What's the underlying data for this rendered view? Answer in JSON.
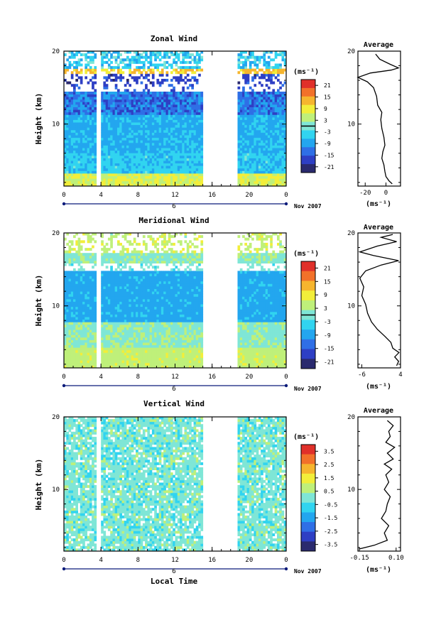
{
  "chart_data": [
    {
      "type": "heatmap",
      "title": "Zonal Wind",
      "ylabel": "Height (km)",
      "xlabel": "",
      "date_label": "6",
      "month_label": "Nov 2007",
      "x_ticks": [
        "0",
        "4",
        "8",
        "12",
        "16",
        "20",
        "0"
      ],
      "y_ticks": [
        "10",
        "20"
      ],
      "xlim": [
        0,
        24
      ],
      "ylim": [
        1.5,
        20
      ],
      "gaps": [
        [
          3.7,
          3.9
        ],
        [
          15.0,
          18.6
        ]
      ],
      "colorbar": {
        "unit": "(ms⁻¹)",
        "ticks": [
          "21",
          "15",
          "9",
          "3",
          "-3",
          "-9",
          "-15",
          "-21"
        ],
        "range": [
          -24,
          24
        ],
        "zero_line": 0
      },
      "profile": {
        "title": "Average",
        "unit_label": "(ms⁻¹)",
        "x_ticks": [
          "-20",
          "0"
        ],
        "y_ticks": [
          "10",
          "20"
        ],
        "xlim": [
          -27,
          14
        ],
        "ylim": [
          1.5,
          20
        ],
        "zero_line": 0,
        "points": [
          [
            6,
            1.8
          ],
          [
            3,
            2.2
          ],
          [
            0,
            2.8
          ],
          [
            -1,
            3.5
          ],
          [
            -2,
            4.4
          ],
          [
            -4,
            5.3
          ],
          [
            -3,
            6.2
          ],
          [
            -1,
            7.1
          ],
          [
            -2,
            8.2
          ],
          [
            -4,
            9.4
          ],
          [
            -5,
            10.6
          ],
          [
            -4,
            11.6
          ],
          [
            -8,
            12.6
          ],
          [
            -9,
            13.8
          ],
          [
            -12,
            15.0
          ],
          [
            -18,
            15.8
          ],
          [
            -27,
            16.4
          ],
          [
            -15,
            17.0
          ],
          [
            5,
            17.4
          ],
          [
            12,
            17.7
          ],
          [
            4,
            18.2
          ],
          [
            -6,
            18.9
          ],
          [
            -10,
            19.6
          ]
        ]
      }
    },
    {
      "type": "heatmap",
      "title": "Meridional Wind",
      "ylabel": "Height (km)",
      "xlabel": "",
      "date_label": "6",
      "month_label": "Nov 2007",
      "x_ticks": [
        "0",
        "4",
        "8",
        "12",
        "16",
        "20",
        "0"
      ],
      "y_ticks": [
        "10",
        "20"
      ],
      "xlim": [
        0,
        24
      ],
      "ylim": [
        1.5,
        20
      ],
      "gaps": [
        [
          3.7,
          3.9
        ],
        [
          15.0,
          18.6
        ]
      ],
      "colorbar": {
        "unit": "(ms⁻¹)",
        "ticks": [
          "21",
          "15",
          "9",
          "3",
          "-3",
          "-9",
          "-15",
          "-21"
        ],
        "range": [
          -24,
          24
        ],
        "zero_line": 0
      },
      "profile": {
        "title": "Average",
        "unit_label": "(ms⁻¹)",
        "x_ticks": [
          "-6",
          "4"
        ],
        "y_ticks": [
          "10",
          "20"
        ],
        "xlim": [
          -7,
          4
        ],
        "ylim": [
          1.5,
          20
        ],
        "zero_line": 0,
        "points": [
          [
            3,
            1.8
          ],
          [
            3.5,
            2.4
          ],
          [
            2.5,
            3.0
          ],
          [
            3.6,
            3.6
          ],
          [
            2,
            4.2
          ],
          [
            1.5,
            5.0
          ],
          [
            0,
            5.8
          ],
          [
            -2,
            6.8
          ],
          [
            -3.5,
            7.8
          ],
          [
            -4.5,
            9.0
          ],
          [
            -5,
            10.2
          ],
          [
            -6,
            11.4
          ],
          [
            -5.5,
            12.6
          ],
          [
            -6.5,
            13.8
          ],
          [
            -5,
            14.8
          ],
          [
            -1,
            15.6
          ],
          [
            3.5,
            16.2
          ],
          [
            -3,
            16.9
          ],
          [
            -6.5,
            17.4
          ],
          [
            -2,
            18.2
          ],
          [
            3,
            18.8
          ],
          [
            -1,
            19.4
          ],
          [
            2,
            19.8
          ]
        ]
      }
    },
    {
      "type": "heatmap",
      "title": "Vertical Wind",
      "ylabel": "Height (km)",
      "xlabel": "Local Time",
      "date_label": "6",
      "month_label": "Nov 2007",
      "x_ticks": [
        "0",
        "4",
        "8",
        "12",
        "16",
        "20",
        "0"
      ],
      "y_ticks": [
        "10",
        "20"
      ],
      "xlim": [
        0,
        24
      ],
      "ylim": [
        1.5,
        20
      ],
      "gaps": [
        [
          3.7,
          3.9
        ],
        [
          15.0,
          18.6
        ]
      ],
      "colorbar": {
        "unit": "(ms⁻¹)",
        "ticks": [
          "3.5",
          "2.5",
          "1.5",
          "0.5",
          "-0.5",
          "-1.5",
          "-2.5",
          "-3.5"
        ],
        "range": [
          -4,
          4
        ],
        "zero_line": null
      },
      "profile": {
        "title": "Average",
        "unit_label": "(ms⁻¹)",
        "x_ticks": [
          "-0.15",
          "0.10"
        ],
        "y_ticks": [
          "10",
          "20"
        ],
        "xlim": [
          -0.16,
          0.13
        ],
        "ylim": [
          1.5,
          20
        ],
        "zero_line": null,
        "points": [
          [
            -0.15,
            1.8
          ],
          [
            -0.05,
            2.3
          ],
          [
            0.04,
            3.0
          ],
          [
            0.02,
            4.0
          ],
          [
            0.05,
            5.0
          ],
          [
            0.0,
            6.0
          ],
          [
            0.03,
            7.0
          ],
          [
            0.04,
            8.0
          ],
          [
            0.06,
            9.0
          ],
          [
            0.02,
            10.0
          ],
          [
            0.05,
            11.0
          ],
          [
            0.03,
            12.0
          ],
          [
            0.07,
            12.8
          ],
          [
            0.02,
            13.5
          ],
          [
            0.08,
            14.2
          ],
          [
            0.04,
            15.0
          ],
          [
            0.09,
            15.8
          ],
          [
            0.03,
            16.5
          ],
          [
            0.06,
            17.3
          ],
          [
            0.05,
            18.0
          ],
          [
            0.08,
            18.8
          ],
          [
            0.04,
            19.5
          ]
        ]
      }
    }
  ],
  "colors": {
    "scale": [
      "#2a2a6e",
      "#2e3fc4",
      "#2f6fe6",
      "#23a6ef",
      "#31d4f0",
      "#7fe6d6",
      "#bff07a",
      "#f2ee3a",
      "#f6b52e",
      "#f2712a",
      "#e0302a"
    ],
    "background": "#ffffff",
    "axis": "#000000",
    "date_bar": "#0a1a7a"
  }
}
